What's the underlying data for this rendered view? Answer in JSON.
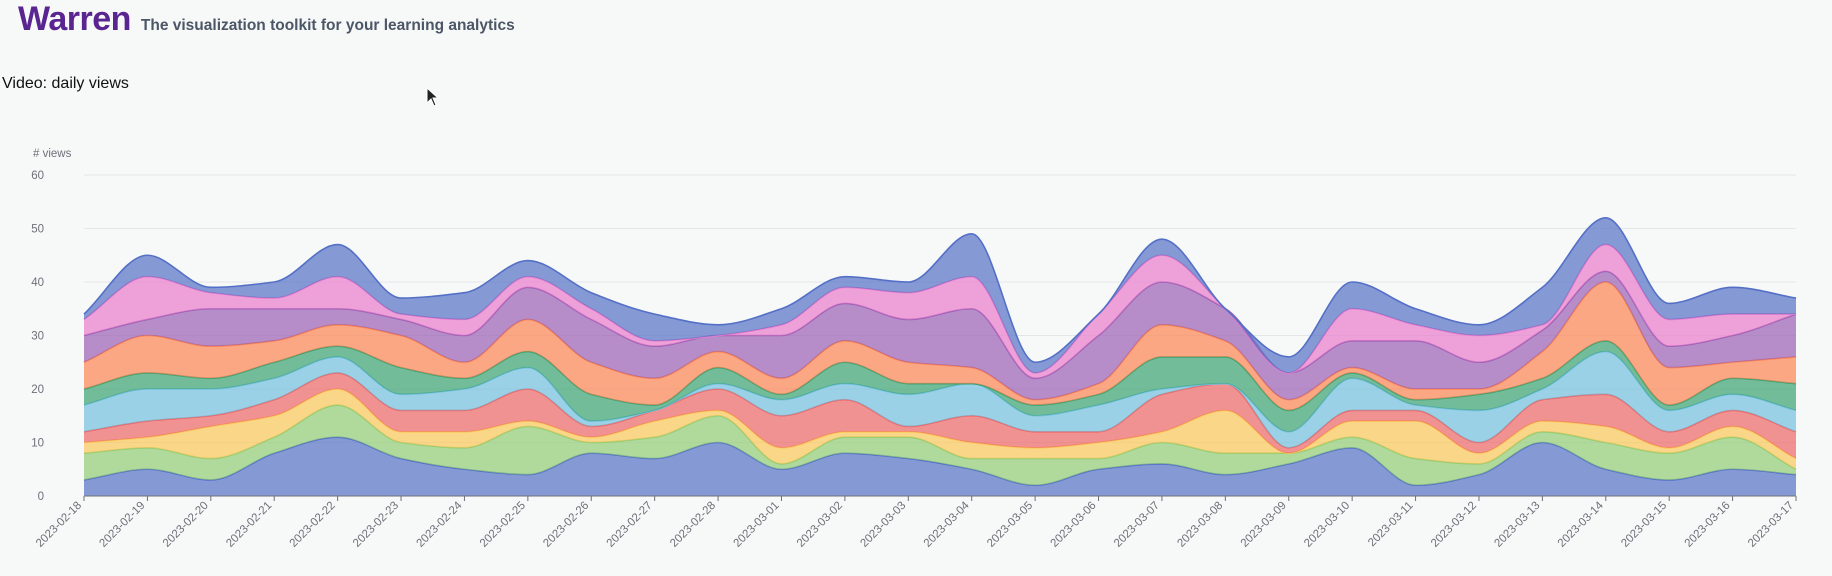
{
  "header": {
    "brand": "Warren",
    "tagline": "The visualization toolkit for your learning analytics"
  },
  "chart_title": "Video: daily views",
  "chart_data": {
    "type": "area",
    "stacked": true,
    "smooth": true,
    "ylabel": "# views",
    "ylim": [
      0,
      60
    ],
    "yticks": [
      0,
      10,
      20,
      30,
      40,
      50,
      60
    ],
    "grid": true,
    "x": [
      "2023-02-18",
      "2023-02-19",
      "2023-02-20",
      "2023-02-21",
      "2023-02-22",
      "2023-02-23",
      "2023-02-24",
      "2023-02-25",
      "2023-02-26",
      "2023-02-27",
      "2023-02-28",
      "2023-03-01",
      "2023-03-02",
      "2023-03-03",
      "2023-03-04",
      "2023-03-05",
      "2023-03-06",
      "2023-03-07",
      "2023-03-08",
      "2023-03-09",
      "2023-03-10",
      "2023-03-11",
      "2023-03-12",
      "2023-03-13",
      "2023-03-14",
      "2023-03-15",
      "2023-03-16",
      "2023-03-17"
    ],
    "series": [
      {
        "color": "#5470c6",
        "values": [
          3,
          5,
          3,
          8,
          11,
          7,
          5,
          4,
          8,
          7,
          10,
          5,
          8,
          7,
          5,
          2,
          5,
          6,
          4,
          6,
          9,
          2,
          4,
          10,
          5,
          3,
          5,
          4
        ]
      },
      {
        "color": "#91cc75",
        "values": [
          5,
          4,
          4,
          3,
          6,
          3,
          4,
          9,
          2,
          4,
          5,
          1,
          3,
          4,
          2,
          5,
          2,
          4,
          4,
          2,
          2,
          5,
          2,
          2,
          5,
          5,
          6,
          1
        ]
      },
      {
        "color": "#fac858",
        "values": [
          2,
          2,
          6,
          4,
          3,
          2,
          3,
          1,
          1,
          3,
          1,
          3,
          1,
          1,
          3,
          2,
          3,
          2,
          8,
          0,
          3,
          7,
          2,
          2,
          3,
          1,
          2,
          2
        ]
      },
      {
        "color": "#ee6666",
        "values": [
          2,
          3,
          2,
          3,
          3,
          4,
          4,
          6,
          2,
          2,
          4,
          6,
          6,
          1,
          5,
          3,
          2,
          7,
          5,
          1,
          2,
          2,
          2,
          4,
          6,
          3,
          3,
          5
        ]
      },
      {
        "color": "#73c0de",
        "values": [
          5,
          6,
          5,
          4,
          3,
          3,
          4,
          4,
          1,
          0,
          1,
          3,
          3,
          6,
          6,
          3,
          5,
          1,
          0,
          3,
          6,
          1,
          6,
          2,
          8,
          4,
          3,
          4
        ]
      },
      {
        "color": "#3ba272",
        "values": [
          3,
          3,
          2,
          3,
          2,
          5,
          2,
          3,
          5,
          1,
          3,
          1,
          4,
          2,
          0,
          2,
          2,
          6,
          5,
          4,
          1,
          1,
          3,
          2,
          2,
          1,
          3,
          5
        ]
      },
      {
        "color": "#fc8452",
        "values": [
          5,
          7,
          6,
          4,
          4,
          6,
          3,
          6,
          6,
          5,
          3,
          3,
          4,
          4,
          3,
          1,
          2,
          6,
          3,
          2,
          1,
          2,
          1,
          5,
          11,
          7,
          3,
          5
        ]
      },
      {
        "color": "#9a60b4",
        "values": [
          5,
          3,
          7,
          6,
          3,
          3,
          5,
          6,
          8,
          6,
          3,
          8,
          7,
          8,
          11,
          4,
          9,
          8,
          6,
          5,
          5,
          9,
          5,
          4,
          2,
          4,
          5,
          8
        ]
      },
      {
        "color": "#ea7ccc",
        "values": [
          3,
          8,
          3,
          2,
          6,
          1,
          3,
          2,
          2,
          1,
          0,
          2,
          3,
          5,
          6,
          1,
          4,
          5,
          0,
          0,
          6,
          3,
          5,
          1,
          5,
          5,
          4,
          0
        ]
      },
      {
        "color": "#5470c6",
        "values": [
          1,
          4,
          1,
          3,
          6,
          3,
          5,
          3,
          3,
          5,
          2,
          3,
          2,
          2,
          8,
          2,
          0,
          3,
          0,
          3,
          5,
          3,
          2,
          7,
          5,
          3,
          5,
          3
        ]
      }
    ]
  }
}
